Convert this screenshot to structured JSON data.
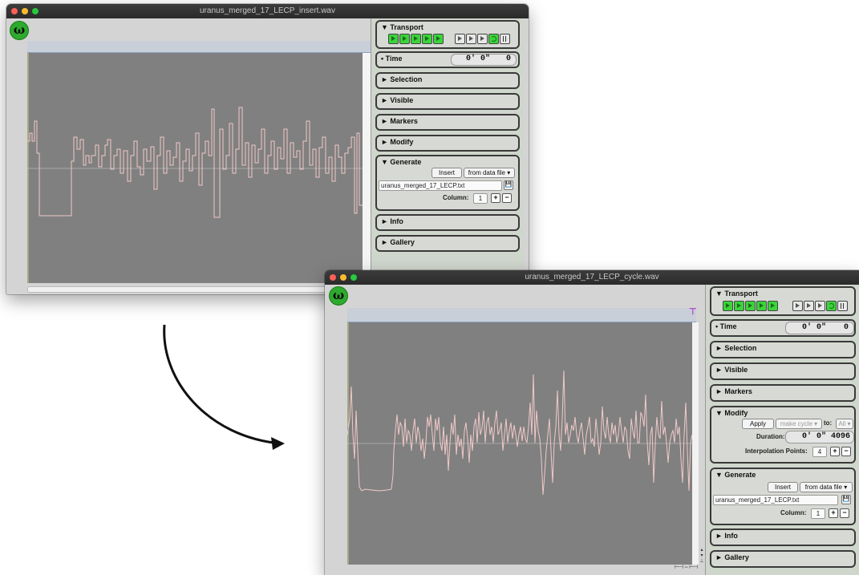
{
  "window1": {
    "title": "uranus_merged_17_LECP_insert.wav",
    "logo": "ω",
    "transport_title": "▼ Transport",
    "time_title": "• Time",
    "time_value": "0' 0\"",
    "time_samples": "0",
    "sections": [
      "► Selection",
      "► Visible",
      "► Markers",
      "► Modify"
    ],
    "generate": {
      "title": "▼ Generate",
      "insert": "Insert",
      "source": "from data file ▾",
      "filename": "uranus_merged_17_LECP.txt",
      "column_label": "Column:",
      "column_value": "1",
      "plus": "+",
      "minus": "−"
    },
    "info": "► Info",
    "gallery": "► Gallery"
  },
  "window2": {
    "title": "uranus_merged_17_LECP_cycle.wav",
    "logo": "ω",
    "transport_title": "▼ Transport",
    "time_title": "• Time",
    "time_value": "0' 0\"",
    "time_samples": "0",
    "sections": [
      "► Selection",
      "► Visible",
      "► Markers"
    ],
    "modify": {
      "title": "▼ Modify",
      "apply": "Apply",
      "action": "make cycle ▾",
      "to_label": "to:",
      "to_value": "All ▾",
      "duration_label": "Duration:",
      "duration_value": "0' 0\"",
      "duration_samples": "4096",
      "interp_label": "Interpolation Points:",
      "interp_value": "4",
      "plus": "+",
      "minus": "−"
    },
    "generate": {
      "title": "▼ Generate",
      "insert": "Insert",
      "source": "from data file ▾",
      "filename": "uranus_merged_17_LECP.txt",
      "column_label": "Column:",
      "column_value": "1",
      "plus": "+",
      "minus": "−"
    },
    "info": "► Info",
    "gallery": "► Gallery"
  },
  "colors": {
    "waveform": "#f2c9c9",
    "plot_bg": "#808080",
    "logo": "#2eaa2e"
  }
}
